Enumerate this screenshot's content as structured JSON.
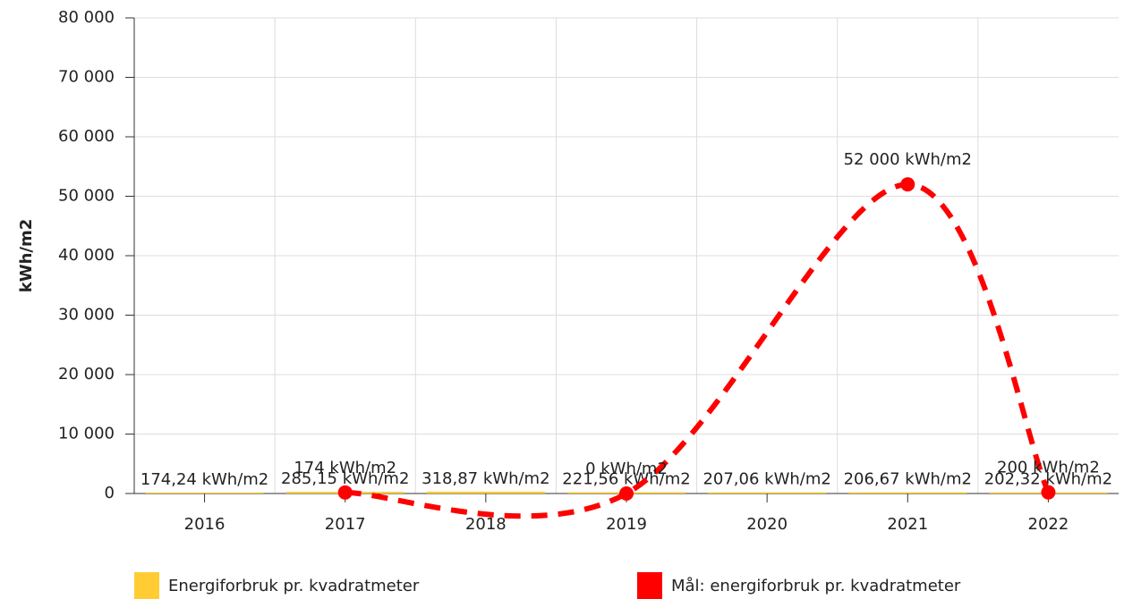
{
  "chart_data": {
    "type": "bar_line",
    "y_axis_title": "kWh/m2",
    "categories": [
      "2016",
      "2017",
      "2018",
      "2019",
      "2020",
      "2021",
      "2022"
    ],
    "ylim": [
      0,
      80000
    ],
    "yticks": [
      0,
      {
        "value": 10000,
        "label": "10 000"
      },
      {
        "value": 20000,
        "label": "20 000"
      },
      {
        "value": 30000,
        "label": "30 000"
      },
      {
        "value": 40000,
        "label": "40 000"
      },
      {
        "value": 50000,
        "label": "50 000"
      },
      {
        "value": 60000,
        "label": "60 000"
      },
      {
        "value": 70000,
        "label": "70 000"
      },
      {
        "value": 80000,
        "label": "80 000"
      }
    ],
    "grid": true,
    "legend": "bottom",
    "series": [
      {
        "name": "Energiforbruk pr. kvadratmeter",
        "type": "bar",
        "color": "#ffcc33",
        "values": [
          174.24,
          285.15,
          318.87,
          221.56,
          207.06,
          206.67,
          202.32
        ],
        "value_labels": [
          "174,24 kWh/m2",
          "285,15 kWh/m2",
          "318,87 kWh/m2",
          "221,56 kWh/m2",
          "207,06 kWh/m2",
          "206,67 kWh/m2",
          "202,32 kWh/m2"
        ]
      },
      {
        "name": "Mål: energiforbruk pr. kvadratmeter",
        "type": "line",
        "color": "#ff0000",
        "dashed": true,
        "smooth": true,
        "connect_nulls": true,
        "values": [
          null,
          174,
          null,
          0,
          null,
          52000,
          200
        ],
        "value_labels": [
          null,
          "174 kWh/m2",
          null,
          "0 kWh/m2",
          null,
          "52 000 kWh/m2",
          "200 kWh/m2"
        ]
      }
    ]
  }
}
